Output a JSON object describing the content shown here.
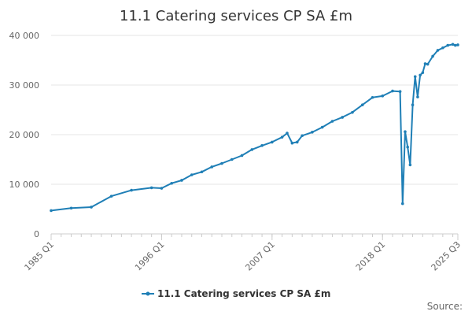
{
  "chart_data": {
    "type": "line",
    "title": "11.1 Catering services CP SA £m",
    "xlabel": "",
    "ylabel": "",
    "ylim": [
      0,
      40000
    ],
    "y_ticks": [
      "0",
      "10 000",
      "20 000",
      "30 000",
      "40 000"
    ],
    "y_tick_values": [
      0,
      10000,
      20000,
      30000,
      40000
    ],
    "x_tick_labels": [
      "1985 Q1",
      "1996 Q1",
      "2007 Q1",
      "2018 Q1",
      "2025 Q3"
    ],
    "grid": true,
    "legend_position": "bottom",
    "color": "#1f7fb6",
    "series": [
      {
        "name": "11.1 Catering services CP SA £m",
        "x": [
          "1985 Q1",
          "1987 Q1",
          "1989 Q1",
          "1991 Q1",
          "1993 Q1",
          "1995 Q1",
          "1996 Q1",
          "1997 Q1",
          "1998 Q1",
          "1999 Q1",
          "2000 Q1",
          "2001 Q1",
          "2002 Q1",
          "2003 Q1",
          "2004 Q1",
          "2005 Q1",
          "2006 Q1",
          "2007 Q1",
          "2008 Q1",
          "2008 Q3",
          "2009 Q1",
          "2009 Q3",
          "2010 Q1",
          "2011 Q1",
          "2012 Q1",
          "2013 Q1",
          "2014 Q1",
          "2015 Q1",
          "2016 Q1",
          "2017 Q1",
          "2018 Q1",
          "2019 Q1",
          "2019 Q4",
          "2020 Q1",
          "2020 Q2",
          "2020 Q3",
          "2020 Q4",
          "2021 Q1",
          "2021 Q2",
          "2021 Q3",
          "2021 Q4",
          "2022 Q1",
          "2022 Q2",
          "2022 Q3",
          "2023 Q1",
          "2023 Q3",
          "2024 Q1",
          "2024 Q3",
          "2025 Q1",
          "2025 Q2",
          "2025 Q3"
        ],
        "values": [
          4700,
          5200,
          5400,
          7600,
          8800,
          9300,
          9200,
          10200,
          10800,
          11900,
          12500,
          13500,
          14200,
          15000,
          15800,
          17000,
          17800,
          18500,
          19500,
          20300,
          18300,
          18500,
          19800,
          20500,
          21500,
          22700,
          23500,
          24500,
          26000,
          27500,
          27800,
          28800,
          28700,
          6100,
          20600,
          17500,
          13900,
          26000,
          31700,
          27600,
          32000,
          32500,
          34300,
          34200,
          35800,
          37000,
          37500,
          38000,
          38200,
          38000,
          38100
        ]
      }
    ]
  },
  "source_label": "Source:"
}
